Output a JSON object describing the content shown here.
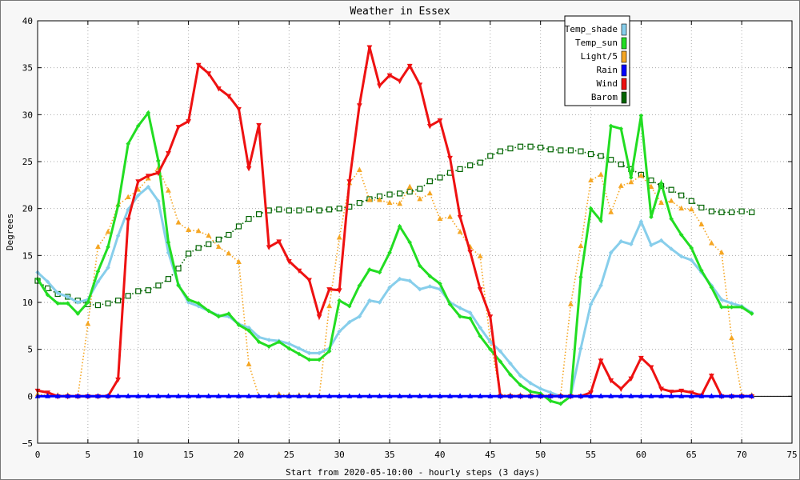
{
  "chart_data": {
    "type": "line",
    "title": "Weather in Essex",
    "xlabel": "Start from 2020-05-10:00 - hourly steps (3 days)",
    "ylabel": "Degrees",
    "xlim": [
      0,
      75
    ],
    "ylim": [
      -5,
      40
    ],
    "xticks": [
      0,
      5,
      10,
      15,
      20,
      25,
      30,
      35,
      40,
      45,
      50,
      55,
      60,
      65,
      70,
      75
    ],
    "yticks": [
      -5,
      0,
      5,
      10,
      15,
      20,
      25,
      30,
      35,
      40
    ],
    "grid": true,
    "legend_position": "top-right",
    "x": [
      0,
      1,
      2,
      3,
      4,
      5,
      6,
      7,
      8,
      9,
      10,
      11,
      12,
      13,
      14,
      15,
      16,
      17,
      18,
      19,
      20,
      21,
      22,
      23,
      24,
      25,
      26,
      27,
      28,
      29,
      30,
      31,
      32,
      33,
      34,
      35,
      36,
      37,
      38,
      39,
      40,
      41,
      42,
      43,
      44,
      45,
      46,
      47,
      48,
      49,
      50,
      51,
      52,
      53,
      54,
      55,
      56,
      57,
      58,
      59,
      60,
      61,
      62,
      63,
      64,
      65,
      66,
      67,
      68,
      69,
      70,
      71
    ],
    "series": [
      {
        "name": "Temp_shade",
        "color": "#87ceeb",
        "marker": "diamond",
        "style": "solid",
        "values": [
          13.2,
          12.2,
          11.0,
          10.6,
          10.0,
          10.3,
          12.2,
          13.7,
          17.1,
          19.9,
          21.4,
          22.3,
          20.8,
          15.3,
          11.9,
          10.0,
          9.6,
          9.1,
          8.6,
          8.5,
          7.7,
          7.3,
          6.3,
          6.0,
          5.9,
          5.6,
          5.1,
          4.6,
          4.6,
          5.1,
          6.9,
          7.9,
          8.5,
          10.2,
          10.0,
          11.6,
          12.5,
          12.3,
          11.4,
          11.7,
          11.4,
          10.0,
          9.4,
          8.9,
          7.3,
          5.8,
          4.8,
          3.5,
          2.2,
          1.4,
          0.8,
          0.4,
          0.0,
          0.0,
          5.1,
          9.8,
          11.8,
          15.3,
          16.5,
          16.2,
          18.6,
          16.1,
          16.6,
          15.7,
          14.9,
          14.5,
          13.2,
          11.8,
          10.3,
          9.9,
          9.6,
          8.9
        ]
      },
      {
        "name": "Temp_sun",
        "color": "#22dd22",
        "marker": "diamond",
        "style": "solid",
        "values": [
          12.5,
          10.8,
          9.9,
          9.9,
          8.8,
          10.0,
          13.3,
          15.9,
          20.3,
          26.9,
          28.8,
          30.2,
          25.1,
          16.4,
          11.8,
          10.3,
          9.9,
          9.1,
          8.5,
          8.8,
          7.6,
          7.0,
          5.8,
          5.3,
          5.8,
          5.1,
          4.5,
          3.9,
          3.9,
          4.8,
          10.2,
          9.6,
          11.8,
          13.5,
          13.2,
          15.3,
          18.1,
          16.4,
          13.9,
          12.8,
          12.0,
          9.8,
          8.5,
          8.3,
          6.4,
          5.0,
          3.7,
          2.3,
          1.2,
          0.5,
          0.3,
          -0.5,
          -0.8,
          0.0,
          12.7,
          20.0,
          18.7,
          28.8,
          28.5,
          23.3,
          29.9,
          19.1,
          22.7,
          18.9,
          17.2,
          15.8,
          13.4,
          11.6,
          9.5,
          9.5,
          9.5,
          8.8
        ]
      },
      {
        "name": "Light/5",
        "color": "#f5a623",
        "marker": "triangle-up",
        "style": "dotted",
        "values": [
          0.2,
          0.1,
          0.1,
          0.1,
          0.0,
          7.7,
          15.9,
          17.5,
          20.4,
          21.2,
          22.0,
          23.2,
          24.3,
          21.9,
          18.5,
          17.7,
          17.6,
          17.1,
          15.9,
          15.2,
          14.3,
          3.4,
          0.0,
          0.0,
          0.2,
          0.1,
          0.1,
          0.1,
          0.0,
          9.6,
          16.9,
          22.7,
          24.1,
          20.9,
          20.9,
          20.6,
          20.5,
          22.3,
          21.0,
          21.6,
          18.9,
          19.1,
          17.5,
          15.9,
          14.9,
          5.9,
          0.2,
          0.1,
          0.1,
          0.1,
          0.1,
          0.1,
          0.1,
          9.8,
          16.0,
          23.0,
          23.6,
          19.6,
          22.4,
          22.8,
          23.5,
          22.3,
          20.6,
          20.8,
          20.0,
          19.9,
          18.3,
          16.3,
          15.3,
          6.2,
          0.1,
          0.1
        ]
      },
      {
        "name": "Rain",
        "color": "#0000ff",
        "marker": "triangle-up",
        "style": "solid",
        "values": [
          0,
          0,
          0,
          0,
          0,
          0,
          0,
          0,
          0,
          0,
          0,
          0,
          0,
          0,
          0,
          0,
          0,
          0,
          0,
          0,
          0,
          0,
          0,
          0,
          0,
          0,
          0,
          0,
          0,
          0,
          0,
          0,
          0,
          0,
          0,
          0,
          0,
          0,
          0,
          0,
          0,
          0,
          0,
          0,
          0,
          0,
          0,
          0,
          0,
          0,
          0,
          0,
          0,
          0,
          0,
          0,
          0,
          0,
          0,
          0,
          0,
          0,
          0,
          0,
          0,
          0,
          0,
          0,
          0,
          0,
          0,
          0
        ]
      },
      {
        "name": "Wind",
        "color": "#ee1111",
        "marker": "triangle-down",
        "style": "solid",
        "values": [
          0.6,
          0.4,
          0.0,
          0.0,
          0.0,
          0.0,
          0.0,
          0.0,
          1.8,
          18.8,
          22.9,
          23.5,
          23.8,
          25.9,
          28.7,
          29.3,
          35.3,
          34.4,
          32.8,
          32.0,
          30.6,
          24.3,
          28.9,
          15.9,
          16.5,
          14.4,
          13.4,
          12.4,
          8.5,
          11.4,
          11.3,
          22.9,
          31.0,
          37.2,
          33.1,
          34.2,
          33.6,
          35.2,
          33.2,
          28.8,
          29.4,
          25.4,
          19.1,
          15.4,
          11.4,
          8.5,
          0.0,
          0.0,
          0.0,
          0.0,
          0.0,
          0.0,
          0.0,
          0.0,
          0.0,
          0.4,
          3.8,
          1.7,
          0.8,
          1.9,
          4.1,
          3.1,
          0.8,
          0.5,
          0.6,
          0.4,
          0.1,
          2.2,
          0.0,
          0.0,
          0.0,
          0.0
        ]
      },
      {
        "name": "Barom",
        "color": "#006400",
        "marker": "square",
        "style": "dotted",
        "values": [
          12.3,
          11.5,
          10.9,
          10.6,
          10.2,
          9.8,
          9.7,
          9.9,
          10.2,
          10.7,
          11.2,
          11.3,
          11.8,
          12.5,
          13.6,
          15.2,
          15.8,
          16.2,
          16.7,
          17.2,
          18.1,
          18.9,
          19.4,
          19.8,
          19.9,
          19.8,
          19.8,
          19.9,
          19.8,
          19.9,
          20.0,
          20.2,
          20.6,
          21.0,
          21.3,
          21.5,
          21.6,
          21.8,
          22.1,
          22.9,
          23.3,
          23.8,
          24.2,
          24.6,
          24.9,
          25.6,
          26.1,
          26.4,
          26.6,
          26.6,
          26.5,
          26.3,
          26.2,
          26.2,
          26.1,
          25.8,
          25.6,
          25.2,
          24.7,
          24.2,
          23.6,
          23.0,
          22.4,
          22.0,
          21.4,
          20.8,
          20.1,
          19.7,
          19.6,
          19.6,
          19.7,
          19.6
        ]
      }
    ]
  }
}
